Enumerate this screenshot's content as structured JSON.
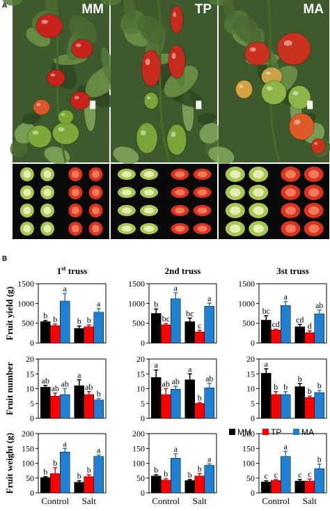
{
  "panel_a": {
    "label": "A",
    "cultivars": [
      {
        "name": "MM",
        "shape": "round",
        "ripe_color": "#c8231a",
        "unripe_color": "#7da83a"
      },
      {
        "name": "TP",
        "shape": "elongated",
        "ripe_color": "#c52a1c",
        "unripe_color": "#78a438"
      },
      {
        "name": "MA",
        "shape": "ribbed",
        "ripe_color": "#c9321e",
        "unripe_color": "#8db447"
      }
    ]
  },
  "panel_b": {
    "label": "B"
  },
  "legend": [
    {
      "name": "MM",
      "color": "#000000"
    },
    {
      "name": "TP",
      "color": "#ff0000"
    },
    {
      "name": "MA",
      "color": "#1f7fd1"
    }
  ],
  "chart_data": [
    {
      "type": "bar",
      "title": "1st truss",
      "title_sup": "st",
      "ylabel": "Fruit yield (g)",
      "ylim": [
        0,
        1500
      ],
      "yticks": [
        0,
        500,
        1000,
        1500
      ],
      "categories": [
        "Control",
        "Salt"
      ],
      "series": [
        {
          "name": "MM",
          "values": [
            540,
            370
          ],
          "errors": [
            30,
            60
          ],
          "labels": [
            "b",
            "b"
          ]
        },
        {
          "name": "TP",
          "values": [
            440,
            410
          ],
          "errors": [
            40,
            45
          ],
          "labels": [
            "b",
            "b"
          ]
        },
        {
          "name": "MA",
          "values": [
            1060,
            780
          ],
          "errors": [
            190,
            90
          ],
          "labels": [
            "a",
            "a"
          ]
        }
      ]
    },
    {
      "type": "bar",
      "title": "2nd truss",
      "ylabel": "",
      "ylim": [
        0,
        1500
      ],
      "yticks": [
        0,
        500,
        1000,
        1500
      ],
      "categories": [
        "Control",
        "Salt"
      ],
      "series": [
        {
          "name": "MM",
          "values": [
            750,
            540
          ],
          "errors": [
            110,
            90
          ],
          "labels": [
            "b",
            "bc"
          ]
        },
        {
          "name": "TP",
          "values": [
            460,
            280
          ],
          "errors": [
            30,
            40
          ],
          "labels": [
            "bc",
            "c"
          ]
        },
        {
          "name": "MA",
          "values": [
            1120,
            930
          ],
          "errors": [
            150,
            80
          ],
          "labels": [
            "a",
            "a"
          ]
        }
      ]
    },
    {
      "type": "bar",
      "title": "3st truss",
      "ylabel": "",
      "ylim": [
        0,
        1500
      ],
      "yticks": [
        0,
        500,
        1000,
        1500
      ],
      "categories": [
        "Control",
        "Salt"
      ],
      "series": [
        {
          "name": "MM",
          "values": [
            580,
            410
          ],
          "errors": [
            110,
            60
          ],
          "labels": [
            "bc",
            "cd"
          ]
        },
        {
          "name": "TP",
          "values": [
            330,
            260
          ],
          "errors": [
            20,
            50
          ],
          "labels": [
            "cd",
            "d"
          ]
        },
        {
          "name": "MA",
          "values": [
            950,
            740
          ],
          "errors": [
            100,
            90
          ],
          "labels": [
            "a",
            "ab"
          ]
        }
      ]
    },
    {
      "type": "bar",
      "title": "",
      "ylabel": "Fruit number",
      "ylim": [
        0,
        20
      ],
      "yticks": [
        0,
        5,
        10,
        15,
        20
      ],
      "categories": [
        "Control",
        "Salt"
      ],
      "series": [
        {
          "name": "MM",
          "values": [
            10.5,
            11.0
          ],
          "errors": [
            0.6,
            2.0
          ],
          "labels": [
            "ab",
            "a"
          ]
        },
        {
          "name": "TP",
          "values": [
            7.5,
            8.0
          ],
          "errors": [
            1.0,
            1.0
          ],
          "labels": [
            "ab",
            "ab"
          ]
        },
        {
          "name": "MA",
          "values": [
            8.0,
            6.2
          ],
          "errors": [
            2.0,
            0.5
          ],
          "labels": [
            "ab",
            "b"
          ]
        }
      ]
    },
    {
      "type": "bar",
      "title": "",
      "ylabel": "",
      "ylim": [
        0,
        20
      ],
      "yticks": [
        0,
        5,
        10,
        15,
        20
      ],
      "categories": [
        "Control",
        "Salt"
      ],
      "series": [
        {
          "name": "MM",
          "values": [
            13.8,
            13.0
          ],
          "errors": [
            2.5,
            2.0
          ],
          "labels": [
            "a",
            "a"
          ]
        },
        {
          "name": "TP",
          "values": [
            8.0,
            5.0
          ],
          "errors": [
            2.0,
            0.3
          ],
          "labels": [
            "ab",
            "b"
          ]
        },
        {
          "name": "MA",
          "values": [
            9.8,
            10.3
          ],
          "errors": [
            1.0,
            1.5
          ],
          "labels": [
            "ab",
            "ab"
          ]
        }
      ]
    },
    {
      "type": "bar",
      "title": "",
      "ylabel": "",
      "ylim": [
        0,
        20
      ],
      "yticks": [
        0,
        5,
        10,
        15,
        20
      ],
      "categories": [
        "Control",
        "Salt"
      ],
      "series": [
        {
          "name": "MM",
          "values": [
            15.2,
            10.7
          ],
          "errors": [
            1.5,
            1.0
          ],
          "labels": [
            "a",
            "b"
          ]
        },
        {
          "name": "TP",
          "values": [
            8.0,
            7.0
          ],
          "errors": [
            1.0,
            0.5
          ],
          "labels": [
            "b",
            "b"
          ]
        },
        {
          "name": "MA",
          "values": [
            8.0,
            8.7
          ],
          "errors": [
            1.0,
            0.7
          ],
          "labels": [
            "b",
            "b"
          ]
        }
      ]
    },
    {
      "type": "bar",
      "title": "",
      "ylabel": "Fruit weight (g)",
      "ylim": [
        0,
        200
      ],
      "yticks": [
        0,
        50,
        100,
        150,
        200
      ],
      "categories": [
        "Control",
        "Salt"
      ],
      "series": [
        {
          "name": "MM",
          "values": [
            52,
            36
          ],
          "errors": [
            3,
            5
          ],
          "labels": [
            "b",
            "b"
          ]
        },
        {
          "name": "TP",
          "values": [
            65,
            55
          ],
          "errors": [
            20,
            6
          ],
          "labels": [
            "b",
            "b"
          ]
        },
        {
          "name": "MA",
          "values": [
            138,
            123
          ],
          "errors": [
            12,
            5
          ],
          "labels": [
            "a",
            "a"
          ]
        }
      ]
    },
    {
      "type": "bar",
      "title": "",
      "ylabel": "",
      "ylim": [
        0,
        200
      ],
      "yticks": [
        0,
        50,
        100,
        150,
        200
      ],
      "categories": [
        "Control",
        "Salt"
      ],
      "series": [
        {
          "name": "MM",
          "values": [
            57,
            42
          ],
          "errors": [
            4,
            3
          ],
          "labels": [
            "b",
            "b"
          ]
        },
        {
          "name": "TP",
          "values": [
            43,
            57
          ],
          "errors": [
            5,
            8
          ],
          "labels": [
            "b",
            "b"
          ]
        },
        {
          "name": "MA",
          "values": [
            117,
            93
          ],
          "errors": [
            15,
            5
          ],
          "labels": [
            "a",
            "a"
          ]
        }
      ]
    },
    {
      "type": "bar",
      "title": "",
      "ylabel": "",
      "ylim": [
        0,
        200
      ],
      "yticks": [
        0,
        50,
        100,
        150,
        200
      ],
      "categories": [
        "Control",
        "Salt"
      ],
      "series": [
        {
          "name": "MM",
          "values": [
            37,
            40
          ],
          "errors": [
            4,
            5
          ],
          "labels": [
            "c",
            "c"
          ]
        },
        {
          "name": "TP",
          "values": [
            42,
            40
          ],
          "errors": [
            3,
            7
          ],
          "labels": [
            "c",
            "c"
          ]
        },
        {
          "name": "MA",
          "values": [
            123,
            82
          ],
          "errors": [
            17,
            15
          ],
          "labels": [
            "a",
            "b"
          ]
        }
      ]
    }
  ]
}
